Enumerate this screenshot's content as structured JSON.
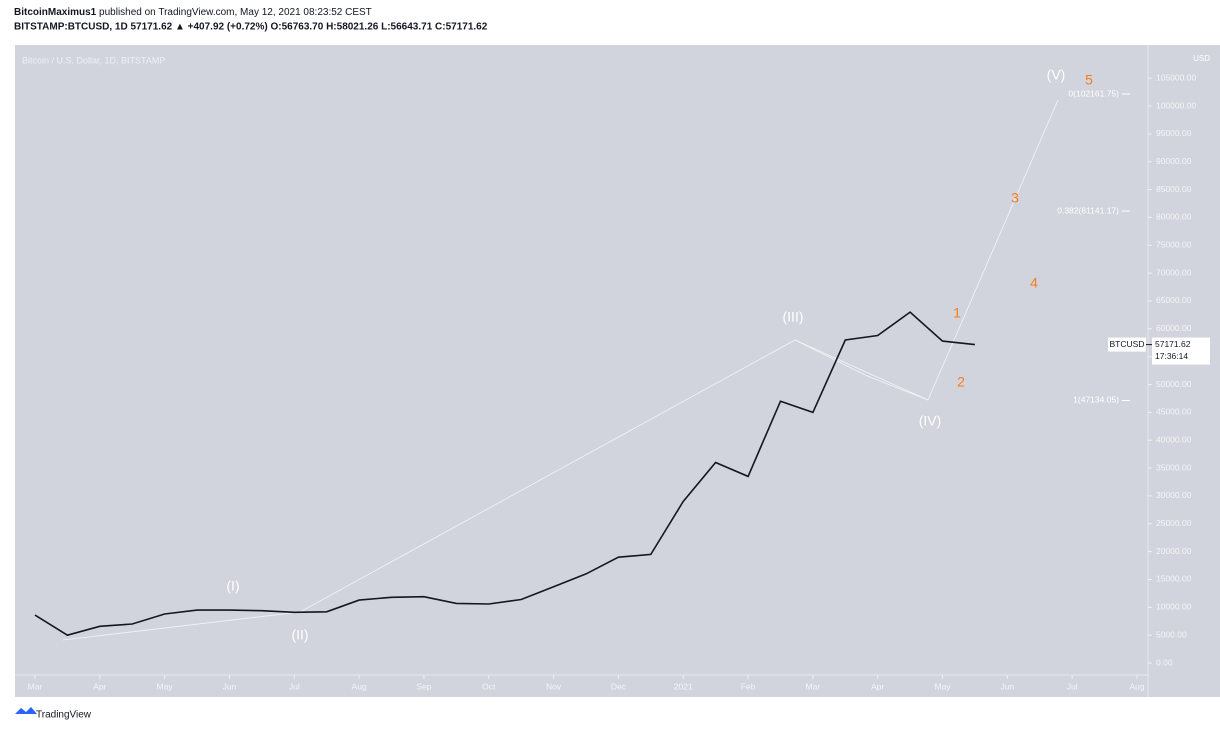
{
  "header": {
    "author": "BitcoinMaximus1",
    "published": "published on TradingView.com, May 12, 2021 08:23:52 CEST",
    "symbol_line": "BITSTAMP:BTCUSD, 1D 57171.62 ▲ +407.92 (+0.72%) O:56763.70 H:58021.26 L:56643.71 C:57171.62"
  },
  "chart_data": {
    "type": "line",
    "title": "Bitcoin / U.S. Dollar, 1D, BITSTAMP",
    "currency": "USD",
    "categories": [
      "Mar",
      null,
      "Apr",
      null,
      "May",
      null,
      "Jun",
      null,
      "Jul",
      null,
      "Aug",
      null,
      "Sep",
      null,
      "Oct",
      null,
      "Nov",
      null,
      "Dec",
      null,
      "2021",
      null,
      "Feb",
      null,
      "Mar",
      null,
      "Apr",
      null,
      "May",
      null,
      "Jun",
      null,
      "Jul",
      null,
      "Aug"
    ],
    "series": [
      {
        "name": "BTCUSD",
        "color": "#131722",
        "values": [
          8600,
          5000,
          6600,
          7000,
          8800,
          9500,
          9500,
          9400,
          9100,
          9200,
          11300,
          11800,
          11900,
          10700,
          10600,
          11400,
          13700,
          16000,
          19000,
          19500,
          29000,
          36000,
          33500,
          47000,
          45000,
          58000,
          58800,
          63000,
          57800,
          57171.62,
          null,
          null,
          null,
          null,
          null
        ]
      }
    ],
    "ylim": [
      -2150,
      110960
    ],
    "yticks": [
      {
        "value": 0,
        "label": "0.00"
      },
      {
        "value": 5000,
        "label": "5000.00"
      },
      {
        "value": 10000,
        "label": "10000.00"
      },
      {
        "value": 15000,
        "label": "15000.00"
      },
      {
        "value": 20000,
        "label": "20000.00"
      },
      {
        "value": 25000,
        "label": "25000.00"
      },
      {
        "value": 30000,
        "label": "30000.00"
      },
      {
        "value": 35000,
        "label": "35000.00"
      },
      {
        "value": 40000,
        "label": "40000.00"
      },
      {
        "value": 45000,
        "label": "45000.00"
      },
      {
        "value": 50000,
        "label": "50000.00"
      },
      {
        "value": 55000,
        "label": "55000.00"
      },
      {
        "value": 60000,
        "label": "60000.00"
      },
      {
        "value": 65000,
        "label": "65000.00"
      },
      {
        "value": 70000,
        "label": "70000.00"
      },
      {
        "value": 75000,
        "label": "75000.00"
      },
      {
        "value": 80000,
        "label": "80000.00"
      },
      {
        "value": 85000,
        "label": "85000.00"
      },
      {
        "value": 90000,
        "label": "90000.00"
      },
      {
        "value": 95000,
        "label": "95000.00"
      },
      {
        "value": 100000,
        "label": "100000.00"
      },
      {
        "value": 105000,
        "label": "105000.00"
      }
    ],
    "fib_levels": [
      {
        "label": "0(102161.75)",
        "value": 102161.75
      },
      {
        "label": "0.382(81141.17)",
        "value": 81141.17
      },
      {
        "label": "1(47134.05)",
        "value": 47134.05
      }
    ],
    "last_price": 57171.62,
    "countdown": "17:36:14",
    "annotations": [
      {
        "text": "(I)",
        "color": "#ffffff"
      },
      {
        "text": "(II)",
        "color": "#ffffff"
      },
      {
        "text": "(III)",
        "color": "#ffffff"
      },
      {
        "text": "(IV)",
        "color": "#ffffff"
      },
      {
        "text": "(V)",
        "color": "#ffffff"
      },
      {
        "text": "1",
        "color": "#f57c1f"
      },
      {
        "text": "2",
        "color": "#f57c1f"
      },
      {
        "text": "3",
        "color": "#f57c1f"
      },
      {
        "text": "4",
        "color": "#f57c1f"
      },
      {
        "text": "5",
        "color": "#f57c1f"
      }
    ]
  },
  "footer": {
    "brand": "TradingView"
  }
}
